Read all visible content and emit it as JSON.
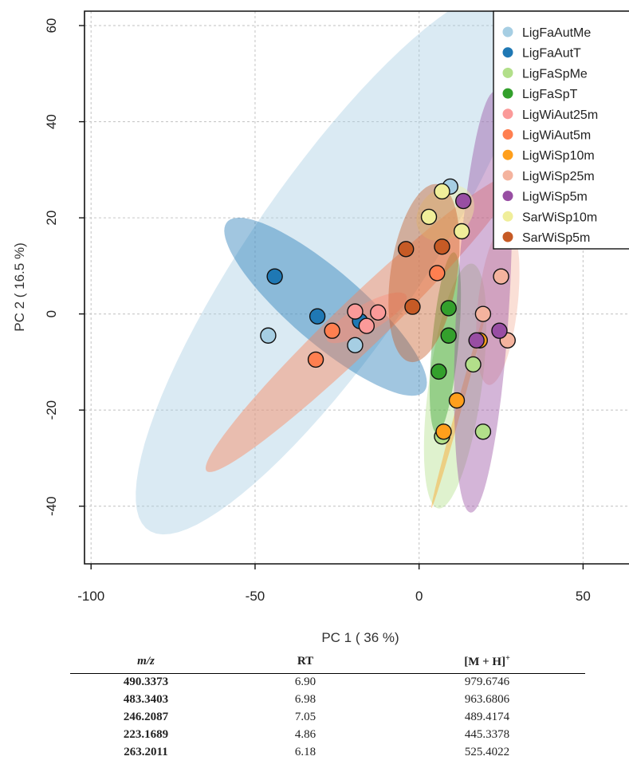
{
  "chart_data": {
    "type": "scatter",
    "title": "",
    "xlabel": "PC 1 ( 36 %)",
    "ylabel": "PC 2 ( 16.5 %)",
    "xlim": [
      -102,
      64
    ],
    "ylim": [
      -52,
      63
    ],
    "xticks": [
      -100,
      -50,
      0,
      50
    ],
    "xtick_labels": [
      "-100",
      "-50",
      "0",
      "50"
    ],
    "yticks": [
      -40,
      -20,
      0,
      20,
      40,
      60
    ],
    "ytick_labels": [
      "-40",
      "-20",
      "0",
      "20",
      "40",
      "60"
    ],
    "grid": true,
    "legend_position": "top-right",
    "series": [
      {
        "name": "LigFaAutMe",
        "color": "#a6cee3",
        "points": [
          [
            -46,
            -4.5
          ],
          [
            -19.5,
            -6.5
          ],
          [
            9.5,
            26.5
          ]
        ],
        "ellipse": {
          "cx": -26,
          "cy": 11,
          "rx": 80,
          "ry": 22,
          "angle": 43
        }
      },
      {
        "name": "LigFaAutT",
        "color": "#1f78b4",
        "points": [
          [
            -44,
            7.8
          ],
          [
            -31,
            -0.5
          ],
          [
            -18,
            -1.5
          ]
        ],
        "ellipse": {
          "cx": -28.5,
          "cy": 1.5,
          "rx": 35,
          "ry": 8.5,
          "angle": -29
        }
      },
      {
        "name": "LigFaSpMe",
        "color": "#b2df8a",
        "points": [
          [
            7,
            -25.5
          ],
          [
            16.5,
            -10.5
          ],
          [
            19.5,
            -24.5
          ]
        ],
        "ellipse": {
          "cx": 11,
          "cy": -15,
          "rx": 26,
          "ry": 8,
          "angle": 78
        }
      },
      {
        "name": "LigFaSpT",
        "color": "#33a02c",
        "points": [
          [
            6,
            -12
          ],
          [
            9,
            1.2
          ],
          [
            9,
            -4.5
          ]
        ],
        "ellipse": {
          "cx": 8,
          "cy": -6,
          "rx": 19,
          "ry": 4,
          "angle": 82
        }
      },
      {
        "name": "LigWiAut25m",
        "color": "#fb9a99",
        "points": [
          [
            -19.5,
            0.5
          ],
          [
            -16,
            -2.5
          ],
          [
            -12.5,
            0.3
          ]
        ],
        "ellipse": {
          "cx": -16,
          "cy": -0.8,
          "rx": 13,
          "ry": 3,
          "angle": 20
        }
      },
      {
        "name": "LigWiAut5m",
        "color": "#ff7f50",
        "points": [
          [
            -31.5,
            -9.5
          ],
          [
            -26.5,
            -3.5
          ],
          [
            5.5,
            8.5
          ]
        ],
        "ellipse": {
          "cx": -18,
          "cy": -2,
          "rx": 56,
          "ry": 6,
          "angle": 33
        }
      },
      {
        "name": "LigWiSp10m",
        "color": "#ff9f1c",
        "points": [
          [
            7.5,
            -24.5
          ],
          [
            11.5,
            -18
          ],
          [
            18.5,
            -5.5
          ]
        ],
        "ellipse": {
          "cx": 12,
          "cy": -20,
          "rx": 22,
          "ry": 0.8,
          "angle": 68
        }
      },
      {
        "name": "LigWiSp25m",
        "color": "#f4b39e",
        "points": [
          [
            19.5,
            0
          ],
          [
            25,
            7.8
          ],
          [
            27,
            -5.5
          ]
        ],
        "ellipse": {
          "cx": 24,
          "cy": 2,
          "rx": 17,
          "ry": 6,
          "angle": 80
        }
      },
      {
        "name": "LigWiSp5m",
        "color": "#984ea3",
        "points": [
          [
            13.5,
            23.5
          ],
          [
            17.5,
            -5.5
          ],
          [
            24.5,
            -3.5
          ]
        ],
        "ellipse": {
          "cx": 19.5,
          "cy": 2.5,
          "rx": 44,
          "ry": 8,
          "angle": 85
        }
      },
      {
        "name": "SarWiSp10m",
        "color": "#f0ee9a",
        "points": [
          [
            3,
            20.2
          ],
          [
            7,
            25.5
          ],
          [
            13,
            17.2
          ]
        ],
        "ellipse": {
          "cx": 8,
          "cy": 21,
          "rx": 9,
          "ry": 5.5,
          "angle": 15
        }
      },
      {
        "name": "SarWiSp5m",
        "color": "#c65a25",
        "points": [
          [
            -2,
            1.5
          ],
          [
            -4,
            13.5
          ],
          [
            7,
            14
          ]
        ],
        "ellipse": {
          "cx": 1.5,
          "cy": 8.5,
          "rx": 19,
          "ry": 10,
          "angle": 75
        }
      }
    ]
  },
  "table": {
    "headers": [
      "m/z",
      "RT",
      "[M + H]+"
    ],
    "rows": [
      [
        "490.3373",
        "6.90",
        "979.6746"
      ],
      [
        "483.3403",
        "6.98",
        "963.6806"
      ],
      [
        "246.2087",
        "7.05",
        "489.4174"
      ],
      [
        "223.1689",
        "4.86",
        "445.3378"
      ],
      [
        "263.2011",
        "6.18",
        "525.4022"
      ]
    ]
  }
}
